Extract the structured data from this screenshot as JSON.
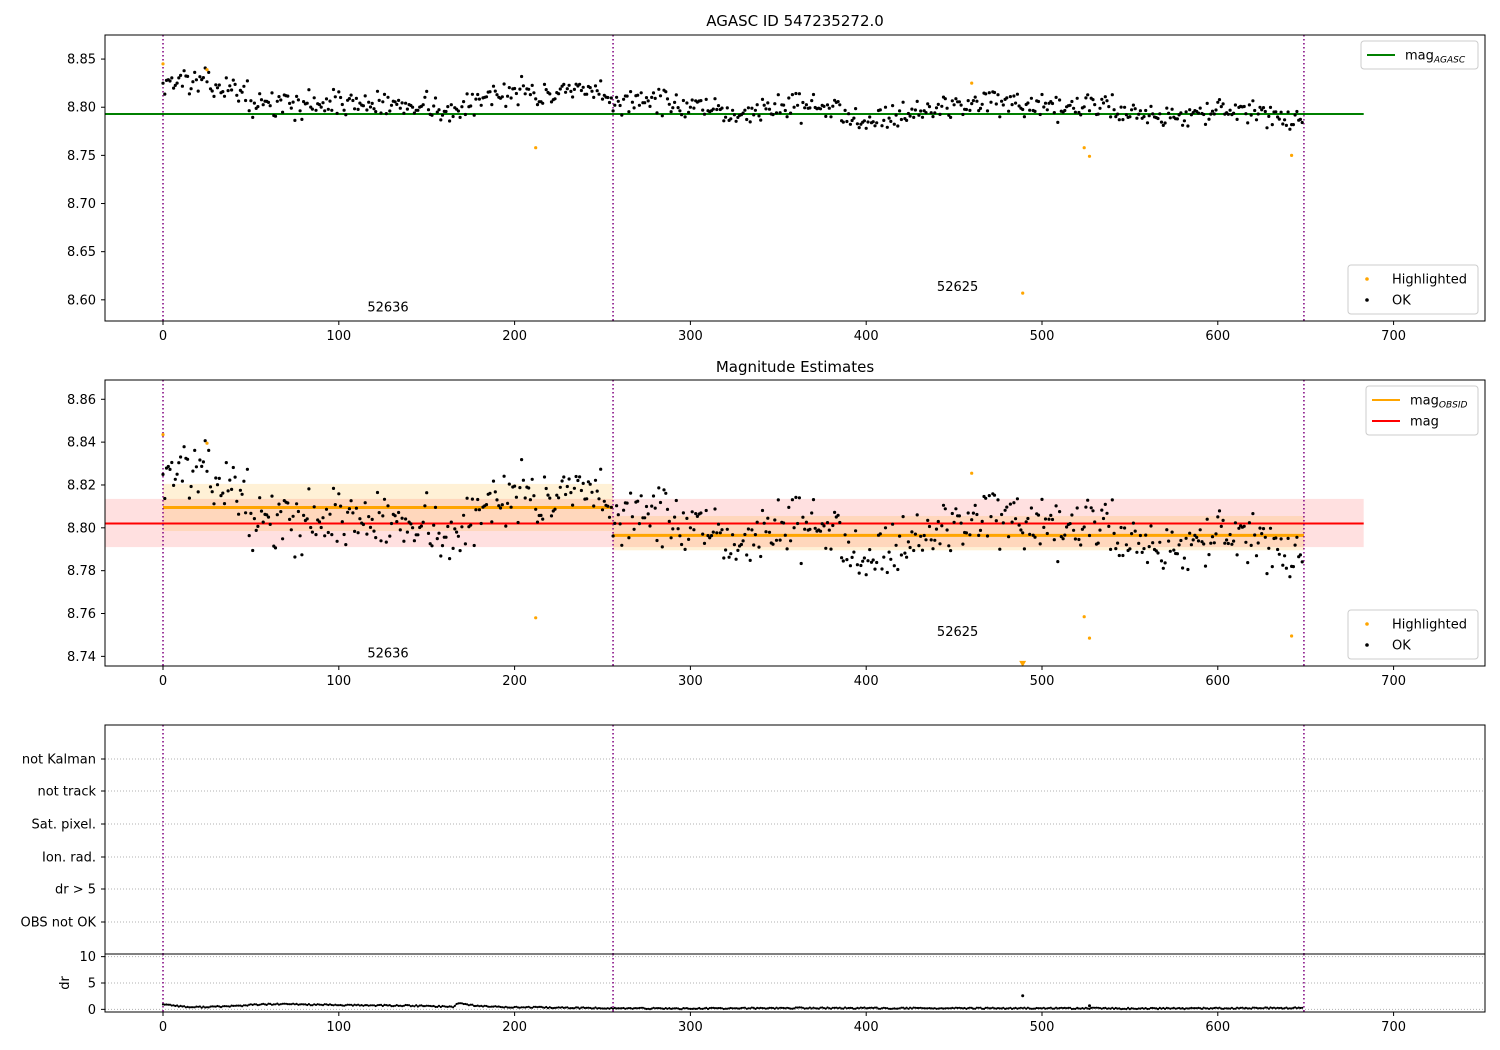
{
  "chart_data": [
    {
      "type": "scatter",
      "title": "AGASC ID 547235272.0",
      "xlim": [
        -33,
        752
      ],
      "ylim": [
        8.578,
        8.875
      ],
      "xticks": [
        0,
        100,
        200,
        300,
        400,
        500,
        600,
        700
      ],
      "yticks": [
        8.6,
        8.65,
        8.7,
        8.75,
        8.8,
        8.85
      ],
      "ytick_decimals": 2,
      "vlines": [
        0,
        256,
        649
      ],
      "obsid_labels": [
        {
          "text": "52636",
          "x": 128,
          "y": 8.588
        },
        {
          "text": "52625",
          "x": 452,
          "y": 8.609
        }
      ],
      "hline": {
        "name": "mag_AGASC",
        "label_main": "mag",
        "label_sub": "AGASC",
        "value": 8.793,
        "xmax": 683,
        "color": "#008000"
      },
      "highlighted": [
        {
          "x": 0,
          "y": 8.845
        },
        {
          "x": 25,
          "y": 8.839
        },
        {
          "x": 212,
          "y": 8.758
        },
        {
          "x": 460,
          "y": 8.825
        },
        {
          "x": 489,
          "y": 8.607
        },
        {
          "x": 524,
          "y": 8.758
        },
        {
          "x": 527,
          "y": 8.749
        },
        {
          "x": 642,
          "y": 8.75
        }
      ],
      "ok_trend": {
        "n": 649,
        "seed": 13,
        "noise": 0.0065,
        "knots": [
          [
            0,
            8.826
          ],
          [
            12,
            8.828
          ],
          [
            28,
            8.823
          ],
          [
            45,
            8.817
          ],
          [
            52,
            8.803
          ],
          [
            75,
            8.803
          ],
          [
            100,
            8.805
          ],
          [
            130,
            8.802
          ],
          [
            148,
            8.805
          ],
          [
            165,
            8.792
          ],
          [
            180,
            8.808
          ],
          [
            200,
            8.82
          ],
          [
            215,
            8.812
          ],
          [
            245,
            8.816
          ],
          [
            256,
            8.803
          ],
          [
            270,
            8.81
          ],
          [
            290,
            8.803
          ],
          [
            320,
            8.792
          ],
          [
            360,
            8.803
          ],
          [
            385,
            8.796
          ],
          [
            400,
            8.788
          ],
          [
            440,
            8.798
          ],
          [
            470,
            8.808
          ],
          [
            490,
            8.796
          ],
          [
            530,
            8.802
          ],
          [
            570,
            8.79
          ],
          [
            600,
            8.797
          ],
          [
            630,
            8.79
          ],
          [
            648,
            8.787
          ]
        ]
      },
      "legends": {
        "top": [
          {
            "marker": "line",
            "color": "#008000",
            "label": "mag",
            "sub": "AGASC"
          }
        ],
        "bottom": [
          {
            "marker": "dot",
            "color": "#ffa500",
            "label": "Highlighted"
          },
          {
            "marker": "dot",
            "color": "#000000",
            "label": "OK"
          }
        ]
      }
    },
    {
      "type": "scatter",
      "title": "Magnitude Estimates",
      "xlim": [
        -33,
        752
      ],
      "ylim": [
        8.7355,
        8.869
      ],
      "xticks": [
        0,
        100,
        200,
        300,
        400,
        500,
        600,
        700
      ],
      "yticks": [
        8.74,
        8.76,
        8.78,
        8.8,
        8.82,
        8.84,
        8.86
      ],
      "ytick_decimals": 2,
      "vlines": [
        0,
        256,
        649
      ],
      "obsid_labels": [
        {
          "text": "52636",
          "x": 128,
          "y": 8.7395
        },
        {
          "text": "52625",
          "x": 452,
          "y": 8.7495
        }
      ],
      "mag_band": {
        "value": 8.802,
        "low": 8.791,
        "high": 8.8135,
        "xmax": 683,
        "color": "#ff0000",
        "fill": "rgba(255,0,0,0.12)"
      },
      "obsid_bands": [
        {
          "x0": 0,
          "x1": 256,
          "value": 8.8095,
          "low": 8.7985,
          "high": 8.8205
        },
        {
          "x0": 256,
          "x1": 649,
          "value": 8.7965,
          "low": 8.7895,
          "high": 8.8055
        }
      ],
      "highlighted": [
        {
          "x": 0,
          "y": 8.8435
        },
        {
          "x": 25,
          "y": 8.8395
        },
        {
          "x": 212,
          "y": 8.758
        },
        {
          "x": 460,
          "y": 8.8255
        },
        {
          "x": 524,
          "y": 8.7585
        },
        {
          "x": 527,
          "y": 8.7485
        },
        {
          "x": 642,
          "y": 8.7495
        }
      ],
      "outside_marker": {
        "x": 489,
        "y": 8.7365,
        "color": "#ffa500"
      },
      "ok_trend_ref": 0,
      "legends": {
        "top": [
          {
            "marker": "line",
            "color": "#ffa500",
            "label": "mag",
            "sub": "OBSID"
          },
          {
            "marker": "line",
            "color": "#ff0000",
            "label": "mag",
            "sub": ""
          }
        ],
        "bottom": [
          {
            "marker": "dot",
            "color": "#ffa500",
            "label": "Highlighted"
          },
          {
            "marker": "dot",
            "color": "#000000",
            "label": "OK"
          }
        ]
      }
    },
    {
      "type": "scatter",
      "title": "",
      "xlim": [
        -33,
        752
      ],
      "categories": [
        "not Kalman",
        "not track",
        "Sat. pixel.",
        "Ion. rad.",
        "dr > 5",
        "OBS not OK"
      ],
      "vlines": [
        0,
        256,
        649
      ]
    },
    {
      "type": "line",
      "title": "",
      "ylabel": "dr",
      "xlim": [
        -33,
        752
      ],
      "ylim": [
        -0.5,
        10.5
      ],
      "xticks": [
        0,
        100,
        200,
        300,
        400,
        500,
        600,
        700
      ],
      "yticks": [
        0,
        5,
        10
      ],
      "ytick_decimals": 0,
      "vlines": [
        0,
        256,
        649
      ],
      "knots": [
        [
          0,
          1.0
        ],
        [
          5,
          0.8
        ],
        [
          15,
          0.4
        ],
        [
          30,
          0.5
        ],
        [
          45,
          0.7
        ],
        [
          52,
          0.9
        ],
        [
          70,
          1.0
        ],
        [
          100,
          0.8
        ],
        [
          140,
          0.7
        ],
        [
          165,
          0.5
        ],
        [
          168,
          1.2
        ],
        [
          180,
          0.6
        ],
        [
          200,
          0.4
        ],
        [
          256,
          0.2
        ],
        [
          300,
          0.15
        ],
        [
          360,
          0.25
        ],
        [
          450,
          0.2
        ],
        [
          520,
          0.2
        ],
        [
          560,
          0.15
        ],
        [
          600,
          0.2
        ],
        [
          648,
          0.25
        ]
      ],
      "spikes": [
        {
          "x": 489,
          "y": 2.6
        },
        {
          "x": 527,
          "y": 0.7
        }
      ]
    }
  ]
}
